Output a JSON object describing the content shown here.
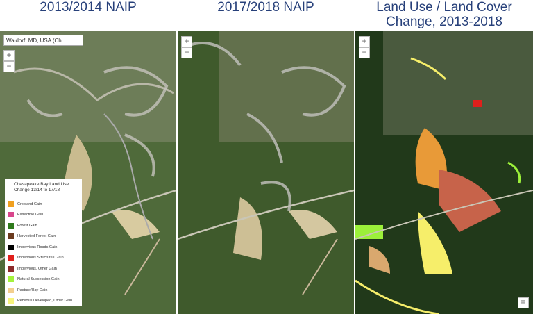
{
  "panels": [
    {
      "title": "2013/2014 NAIP"
    },
    {
      "title": "2017/2018 NAIP"
    },
    {
      "title": "Land Use / Land Cover Change, 2013-2018"
    }
  ],
  "search": {
    "text": "Waldorf, MD, USA (Ch"
  },
  "legend": {
    "title": "Chesapeake Bay Land Use Change 13/14 to 17/18",
    "items": [
      {
        "label": "Cropland Gain",
        "color": "#f0a020"
      },
      {
        "label": "Extractive Gain",
        "color": "#d9468c"
      },
      {
        "label": "Forest Gain",
        "color": "#2f7a1c"
      },
      {
        "label": "Harvested Forest Gain",
        "color": "#6b3b1e"
      },
      {
        "label": "Impervious Roads Gain",
        "color": "#000000"
      },
      {
        "label": "Impervious Structures Gain",
        "color": "#e0201c"
      },
      {
        "label": "Impervious, Other Gain",
        "color": "#8c2a2a"
      },
      {
        "label": "Natural Succession Gain",
        "color": "#a4f23c"
      },
      {
        "label": "Pasture/Hay Gain",
        "color": "#f3cf8e"
      },
      {
        "label": "Pervious Developed, Other Gain",
        "color": "#f7f47c"
      }
    ]
  }
}
